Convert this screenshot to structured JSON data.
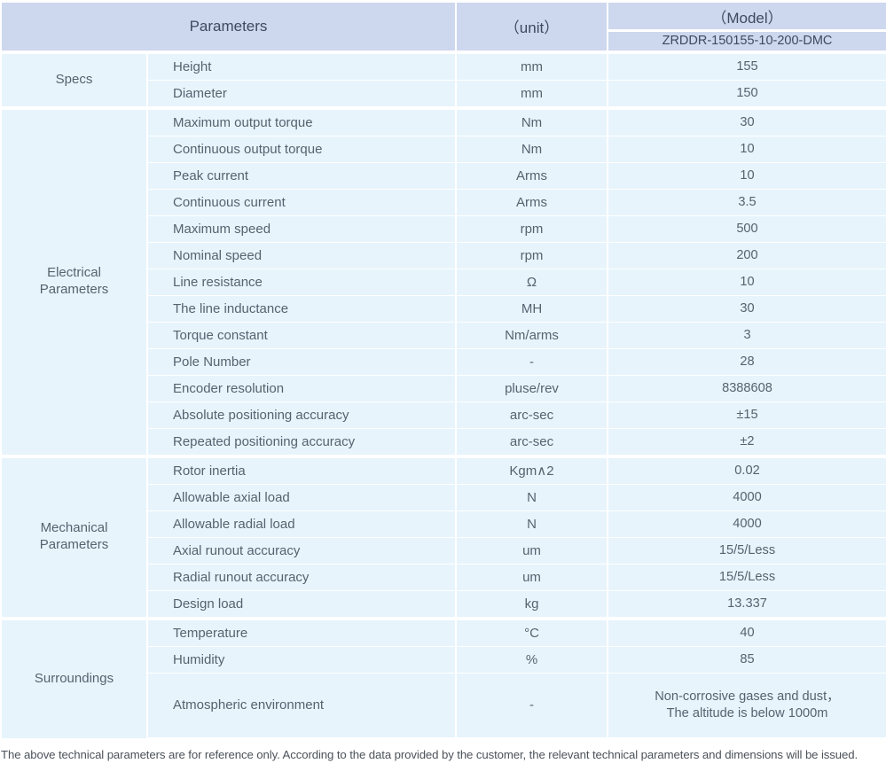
{
  "theme": {
    "header_bg": "#cdd7ee",
    "row_bg": "#e7f4fc",
    "separator": "#ffffff",
    "header_text": "#3e4a5e",
    "body_text": "#57626f"
  },
  "table": {
    "header": {
      "parameters": "Parameters",
      "unit": "（unit）",
      "model": "（Model）",
      "model_number": "ZRDDR-150155-10-200-DMC"
    },
    "groups": [
      {
        "label": "Specs",
        "rows": [
          {
            "param": "Height",
            "unit": "mm",
            "value": "155"
          },
          {
            "param": "Diameter",
            "unit": "mm",
            "value": "150"
          }
        ]
      },
      {
        "label": "Electrical Parameters",
        "rows": [
          {
            "param": "Maximum output torque",
            "unit": "Nm",
            "value": "30"
          },
          {
            "param": "Continuous output torque",
            "unit": "Nm",
            "value": "10"
          },
          {
            "param": "Peak current",
            "unit": "Arms",
            "value": "10"
          },
          {
            "param": "Continuous current",
            "unit": "Arms",
            "value": "3.5"
          },
          {
            "param": "Maximum speed",
            "unit": "rpm",
            "value": "500"
          },
          {
            "param": "Nominal speed",
            "unit": "rpm",
            "value": "200"
          },
          {
            "param": "Line resistance",
            "unit": "Ω",
            "value": "10"
          },
          {
            "param": "The line inductance",
            "unit": "MH",
            "value": "30"
          },
          {
            "param": "Torque constant",
            "unit": "Nm/arms",
            "value": "3"
          },
          {
            "param": "Pole Number",
            "unit": "-",
            "value": "28"
          },
          {
            "param": "Encoder resolution",
            "unit": "pluse/rev",
            "value": "8388608"
          },
          {
            "param": "Absolute positioning accuracy",
            "unit": "arc-sec",
            "value": "±15"
          },
          {
            "param": "Repeated positioning accuracy",
            "unit": "arc-sec",
            "value": "±2"
          }
        ]
      },
      {
        "label": "Mechanical Parameters",
        "rows": [
          {
            "param": "Rotor inertia",
            "unit": "Kgm∧2",
            "value": "0.02"
          },
          {
            "param": "Allowable axial load",
            "unit": "N",
            "value": "4000"
          },
          {
            "param": "Allowable radial load",
            "unit": "N",
            "value": "4000"
          },
          {
            "param": "Axial runout accuracy",
            "unit": "um",
            "value": "15/5/Less"
          },
          {
            "param": "Radial runout accuracy",
            "unit": "um",
            "value": "15/5/Less"
          },
          {
            "param": "Design load",
            "unit": "kg",
            "value": "13.337"
          }
        ]
      },
      {
        "label": "Surroundings",
        "rows": [
          {
            "param": "Temperature",
            "unit": "°C",
            "value": "40"
          },
          {
            "param": "Humidity",
            "unit": "%",
            "value": "85"
          },
          {
            "param": "Atmospheric environment",
            "unit": "-",
            "value": "Non-corrosive gases and dust，\nThe altitude is below 1000m"
          }
        ]
      }
    ],
    "footnote": "The above technical parameters are for reference only. According to the data provided by the customer, the relevant technical parameters and dimensions will be issued."
  }
}
